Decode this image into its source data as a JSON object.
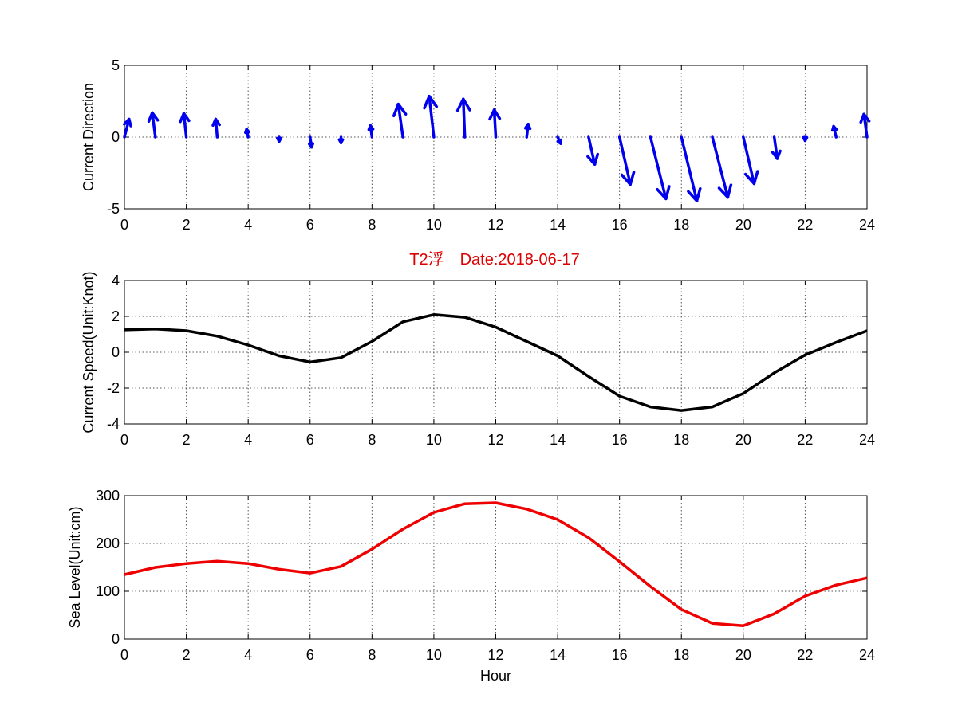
{
  "colors": {
    "direction": "#0000ee",
    "speed": "#000000",
    "sea_level": "#ee0000",
    "title": "#dd0000"
  },
  "title": "T2浮　Date:2018-06-17",
  "chart_data": [
    {
      "type": "quiver",
      "ylabel": "Current Direction",
      "xlabel": "",
      "xlim": [
        0,
        24
      ],
      "ylim": [
        -5,
        5
      ],
      "xticks": [
        "0",
        "2",
        "4",
        "6",
        "8",
        "10",
        "12",
        "14",
        "16",
        "18",
        "20",
        "22",
        "24"
      ],
      "yticks": [
        "-5",
        "0",
        "5"
      ],
      "grid": true,
      "x": [
        0,
        1,
        2,
        3,
        4,
        5,
        6,
        7,
        8,
        9,
        10,
        11,
        12,
        13,
        14,
        15,
        16,
        17,
        18,
        19,
        20,
        21,
        22,
        23,
        24
      ],
      "u": [
        0.15,
        -0.1,
        -0.08,
        -0.05,
        -0.05,
        0.0,
        0.05,
        0.0,
        -0.05,
        -0.15,
        -0.15,
        -0.05,
        -0.05,
        0.05,
        0.1,
        0.2,
        0.35,
        0.5,
        0.5,
        0.5,
        0.35,
        0.1,
        0.0,
        -0.08,
        -0.1
      ],
      "v": [
        1.25,
        1.7,
        1.65,
        1.25,
        0.55,
        -0.3,
        -0.7,
        -0.4,
        0.8,
        2.3,
        2.85,
        2.65,
        1.9,
        0.9,
        -0.45,
        -1.9,
        -3.3,
        -4.3,
        -4.45,
        -4.2,
        -3.25,
        -1.5,
        -0.25,
        0.75,
        1.6
      ]
    },
    {
      "type": "line",
      "ylabel": "Current Speed(Unit:Knot)",
      "xlabel": "",
      "xlim": [
        0,
        24
      ],
      "ylim": [
        -4,
        4
      ],
      "xticks": [
        "0",
        "2",
        "4",
        "6",
        "8",
        "10",
        "12",
        "14",
        "16",
        "18",
        "20",
        "22",
        "24"
      ],
      "yticks": [
        "-4",
        "-2",
        "0",
        "2",
        "4"
      ],
      "grid": true,
      "x": [
        0,
        1,
        2,
        3,
        4,
        5,
        6,
        7,
        8,
        9,
        10,
        11,
        12,
        13,
        14,
        15,
        16,
        17,
        18,
        19,
        20,
        21,
        22,
        23,
        24
      ],
      "y": [
        1.25,
        1.3,
        1.2,
        0.9,
        0.4,
        -0.2,
        -0.55,
        -0.3,
        0.6,
        1.7,
        2.1,
        1.95,
        1.4,
        0.6,
        -0.2,
        -1.35,
        -2.45,
        -3.05,
        -3.25,
        -3.05,
        -2.3,
        -1.15,
        -0.15,
        0.55,
        1.2
      ]
    },
    {
      "type": "line",
      "ylabel": "Sea Level(Unit:cm)",
      "xlabel": "Hour",
      "xlim": [
        0,
        24
      ],
      "ylim": [
        0,
        300
      ],
      "xticks": [
        "0",
        "2",
        "4",
        "6",
        "8",
        "10",
        "12",
        "14",
        "16",
        "18",
        "20",
        "22",
        "24"
      ],
      "yticks": [
        "0",
        "100",
        "200",
        "300"
      ],
      "grid": true,
      "x": [
        0,
        1,
        2,
        3,
        4,
        5,
        6,
        7,
        8,
        9,
        10,
        11,
        12,
        13,
        14,
        15,
        16,
        17,
        18,
        19,
        20,
        21,
        22,
        23,
        24
      ],
      "y": [
        135,
        150,
        158,
        163,
        158,
        146,
        138,
        152,
        188,
        230,
        265,
        283,
        285,
        272,
        250,
        212,
        162,
        110,
        62,
        33,
        28,
        53,
        90,
        113,
        128
      ]
    }
  ]
}
